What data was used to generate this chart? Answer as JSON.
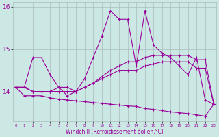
{
  "xlabel": "Windchill (Refroidissement éolien,°C)",
  "background_color": "#cce8e4",
  "grid_color": "#aabbbb",
  "line_color": "#990099",
  "x": [
    0,
    1,
    2,
    3,
    4,
    5,
    6,
    7,
    8,
    9,
    10,
    11,
    12,
    13,
    14,
    15,
    16,
    17,
    18,
    19,
    20,
    21,
    22,
    23
  ],
  "line1": [
    14.1,
    14.1,
    14.8,
    14.8,
    14.4,
    14.1,
    13.9,
    14.0,
    14.3,
    14.8,
    15.3,
    15.9,
    15.7,
    15.7,
    14.6,
    15.9,
    15.1,
    14.9,
    14.8,
    14.6,
    14.4,
    14.8,
    13.8,
    13.7
  ],
  "line2": [
    14.1,
    14.1,
    14.0,
    14.0,
    14.0,
    14.1,
    14.1,
    14.0,
    14.1,
    14.2,
    14.35,
    14.5,
    14.6,
    14.7,
    14.7,
    14.8,
    14.85,
    14.85,
    14.85,
    14.85,
    14.85,
    14.75,
    14.75,
    13.7
  ],
  "line3": [
    14.1,
    14.1,
    14.0,
    14.0,
    14.0,
    14.0,
    14.0,
    14.0,
    14.1,
    14.2,
    14.3,
    14.4,
    14.5,
    14.5,
    14.5,
    14.6,
    14.65,
    14.7,
    14.7,
    14.7,
    14.7,
    14.55,
    14.55,
    13.7
  ],
  "line4": [
    14.1,
    13.9,
    13.9,
    13.9,
    13.85,
    13.82,
    13.8,
    13.78,
    13.76,
    13.74,
    13.72,
    13.7,
    13.68,
    13.66,
    13.65,
    13.6,
    13.58,
    13.55,
    13.52,
    13.5,
    13.48,
    13.45,
    13.42,
    13.7
  ],
  "ylim": [
    13.3,
    16.1
  ],
  "yticks": [
    14,
    15,
    16
  ],
  "xlim": [
    -0.3,
    23.3
  ],
  "xticks": [
    0,
    1,
    2,
    3,
    4,
    5,
    6,
    7,
    8,
    9,
    10,
    11,
    12,
    13,
    14,
    15,
    16,
    17,
    18,
    19,
    20,
    21,
    22,
    23
  ]
}
